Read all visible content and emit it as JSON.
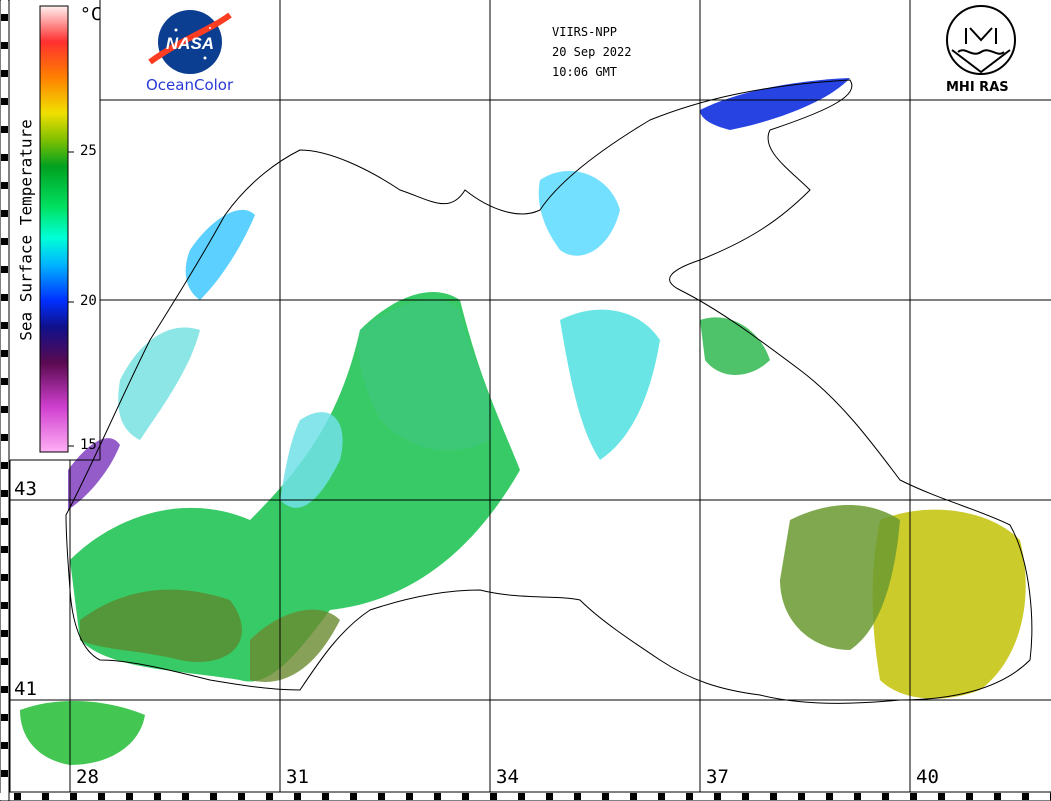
{
  "header": {
    "satellite": "VIIRS-NPP",
    "date": "20 Sep 2022",
    "time": "10:06 GMT"
  },
  "logos": {
    "nasa": "NASA",
    "oceancolor": "OceanColor",
    "mhi": "MHI RAS"
  },
  "colorbar": {
    "title": "Sea Surface Temperature",
    "unit": "°C",
    "ticks": [
      "25",
      "20",
      "15"
    ],
    "min": 15,
    "max": 30,
    "colors": [
      "#ff9cf2",
      "#d03bd4",
      "#5a0a5a",
      "#1a0a9a",
      "#0030ff",
      "#00c8ff",
      "#00ffb0",
      "#00d040",
      "#00a020",
      "#b0d000",
      "#ffe000",
      "#ff8000",
      "#ff3030",
      "#ffc0c0"
    ]
  },
  "grid": {
    "latitudes": [
      "43",
      "41"
    ],
    "longitudes": [
      "28",
      "31",
      "34",
      "37",
      "40"
    ]
  }
}
